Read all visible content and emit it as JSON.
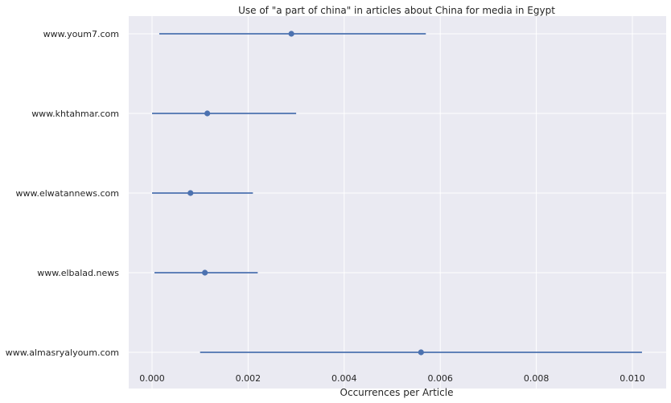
{
  "chart_data": {
    "type": "scatter",
    "title": "Use of \"a part of china\" in articles about China for media in Egypt",
    "xlabel": "Occurrences per Article",
    "ylabel": "",
    "xlim": [
      -0.0005,
      0.0107
    ],
    "xticks": [
      "0.000",
      "0.002",
      "0.004",
      "0.006",
      "0.008",
      "0.010"
    ],
    "categories": [
      "www.youm7.com",
      "www.khtahmar.com",
      "www.elwatannews.com",
      "www.elbalad.news",
      "www.almasryalyoum.com"
    ],
    "points": [
      {
        "category": "www.youm7.com",
        "value": 0.0029,
        "ci_low": 0.00015,
        "ci_high": 0.0057
      },
      {
        "category": "www.khtahmar.com",
        "value": 0.00115,
        "ci_low": 0.0,
        "ci_high": 0.003
      },
      {
        "category": "www.elwatannews.com",
        "value": 0.0008,
        "ci_low": 0.0,
        "ci_high": 0.0021
      },
      {
        "category": "www.elbalad.news",
        "value": 0.0011,
        "ci_low": 5e-05,
        "ci_high": 0.0022
      },
      {
        "category": "www.almasryalyoum.com",
        "value": 0.0056,
        "ci_low": 0.001,
        "ci_high": 0.0102
      }
    ],
    "grid": true,
    "colors": {
      "background": "#EAEAF2",
      "grid": "#FFFFFF",
      "series": "#4C72B0",
      "text": "#262626"
    }
  }
}
